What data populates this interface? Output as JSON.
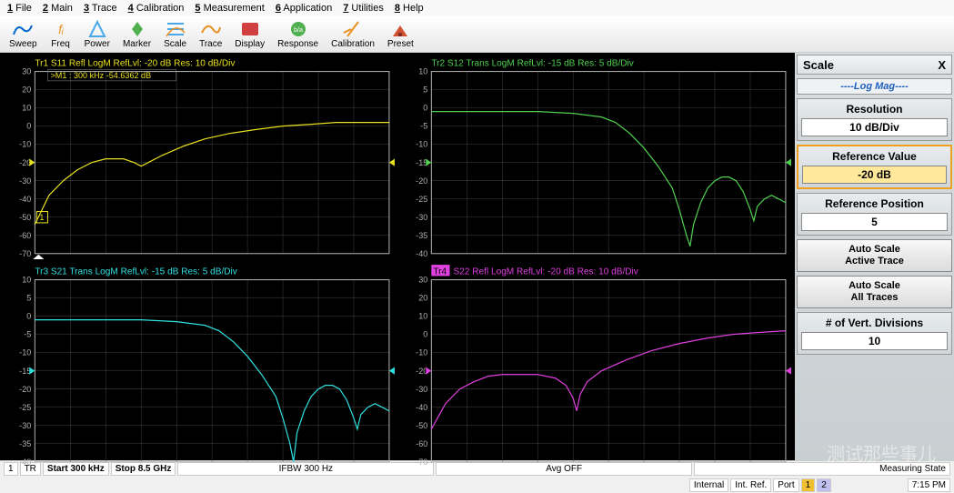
{
  "menu": [
    "1 File",
    "2 Main",
    "3 Trace",
    "4 Calibration",
    "5 Measurement",
    "6 Application",
    "7 Utilities",
    "8 Help"
  ],
  "toolbar": [
    {
      "label": "Sweep",
      "color": "#4aa8e8"
    },
    {
      "label": "Freq",
      "color": "#e89020"
    },
    {
      "label": "Power",
      "color": "#4aa8e8"
    },
    {
      "label": "Marker",
      "color": "#50b050"
    },
    {
      "label": "Scale",
      "color": "#4aa8e8"
    },
    {
      "label": "Trace",
      "color": "#e89020"
    },
    {
      "label": "Display",
      "color": "#d04040"
    },
    {
      "label": "Response",
      "color": "#50b050"
    },
    {
      "label": "Calibration",
      "color": "#e89020"
    },
    {
      "label": "Preset",
      "color": "#d05030"
    }
  ],
  "plots": [
    {
      "title": "Tr1  S11 Refl LogM RefLvl: -20 dB Res: 10 dB/Div",
      "color": "#e8e020",
      "title_color": "#e8e020",
      "ymin": -70,
      "ymax": 30,
      "ystep": 10,
      "ref": -20,
      "marker": ">M1 :  300 kHz  -54.6362  dB",
      "active_label": "1",
      "data": [
        [
          0,
          -54
        ],
        [
          0.04,
          -38
        ],
        [
          0.08,
          -30
        ],
        [
          0.12,
          -24
        ],
        [
          0.16,
          -20
        ],
        [
          0.2,
          -18
        ],
        [
          0.25,
          -18
        ],
        [
          0.28,
          -20
        ],
        [
          0.3,
          -22
        ],
        [
          0.32,
          -20
        ],
        [
          0.36,
          -16
        ],
        [
          0.42,
          -11
        ],
        [
          0.48,
          -7
        ],
        [
          0.55,
          -4
        ],
        [
          0.62,
          -2
        ],
        [
          0.7,
          0
        ],
        [
          0.78,
          1
        ],
        [
          0.85,
          2
        ],
        [
          0.92,
          2
        ],
        [
          1,
          2
        ]
      ]
    },
    {
      "title": "Tr2  S12 Trans LogM RefLvl: -15 dB Res: 5 dB/Div",
      "color": "#50d050",
      "title_color": "#50d050",
      "ymin": -40,
      "ymax": 10,
      "ystep": 5,
      "ref": -15,
      "data": [
        [
          0,
          -1
        ],
        [
          0.1,
          -1
        ],
        [
          0.2,
          -1
        ],
        [
          0.3,
          -1
        ],
        [
          0.4,
          -1.5
        ],
        [
          0.48,
          -2.5
        ],
        [
          0.52,
          -4
        ],
        [
          0.56,
          -7
        ],
        [
          0.6,
          -11
        ],
        [
          0.64,
          -16
        ],
        [
          0.68,
          -22
        ],
        [
          0.7,
          -28
        ],
        [
          0.72,
          -35
        ],
        [
          0.73,
          -38
        ],
        [
          0.74,
          -32
        ],
        [
          0.76,
          -26
        ],
        [
          0.78,
          -22
        ],
        [
          0.8,
          -20
        ],
        [
          0.82,
          -19
        ],
        [
          0.84,
          -19
        ],
        [
          0.86,
          -20
        ],
        [
          0.88,
          -23
        ],
        [
          0.9,
          -28
        ],
        [
          0.91,
          -31
        ],
        [
          0.92,
          -27
        ],
        [
          0.94,
          -25
        ],
        [
          0.96,
          -24
        ],
        [
          0.98,
          -25
        ],
        [
          1,
          -26
        ]
      ]
    },
    {
      "title": "Tr3  S21 Trans LogM RefLvl: -15 dB Res: 5 dB/Div",
      "color": "#30e0e0",
      "title_color": "#30e0e0",
      "ymin": -40,
      "ymax": 10,
      "ystep": 5,
      "ref": -15,
      "data": [
        [
          0,
          -1
        ],
        [
          0.1,
          -1
        ],
        [
          0.2,
          -1
        ],
        [
          0.3,
          -1
        ],
        [
          0.4,
          -1.5
        ],
        [
          0.48,
          -2.5
        ],
        [
          0.52,
          -4
        ],
        [
          0.56,
          -7
        ],
        [
          0.6,
          -11
        ],
        [
          0.64,
          -16
        ],
        [
          0.68,
          -22
        ],
        [
          0.7,
          -28
        ],
        [
          0.72,
          -35
        ],
        [
          0.73,
          -40
        ],
        [
          0.74,
          -32
        ],
        [
          0.76,
          -26
        ],
        [
          0.78,
          -22
        ],
        [
          0.8,
          -20
        ],
        [
          0.82,
          -19
        ],
        [
          0.84,
          -19
        ],
        [
          0.86,
          -20
        ],
        [
          0.88,
          -23
        ],
        [
          0.9,
          -28
        ],
        [
          0.91,
          -31
        ],
        [
          0.92,
          -27
        ],
        [
          0.94,
          -25
        ],
        [
          0.96,
          -24
        ],
        [
          0.98,
          -25
        ],
        [
          1,
          -26
        ]
      ]
    },
    {
      "title": "Tr4  S22 Refl LogM RefLvl: -20 dB Res: 10 dB/Div",
      "color": "#e040e0",
      "title_color": "#e040e0",
      "ymin": -70,
      "ymax": 30,
      "ystep": 10,
      "ref": -20,
      "title_highlight": true,
      "data": [
        [
          0,
          -52
        ],
        [
          0.04,
          -38
        ],
        [
          0.08,
          -30
        ],
        [
          0.12,
          -26
        ],
        [
          0.16,
          -23
        ],
        [
          0.2,
          -22
        ],
        [
          0.25,
          -22
        ],
        [
          0.3,
          -22
        ],
        [
          0.35,
          -24
        ],
        [
          0.38,
          -28
        ],
        [
          0.4,
          -35
        ],
        [
          0.41,
          -42
        ],
        [
          0.42,
          -33
        ],
        [
          0.44,
          -26
        ],
        [
          0.48,
          -20
        ],
        [
          0.55,
          -14
        ],
        [
          0.62,
          -9
        ],
        [
          0.7,
          -5
        ],
        [
          0.78,
          -2
        ],
        [
          0.85,
          0
        ],
        [
          0.92,
          1
        ],
        [
          1,
          2
        ]
      ]
    }
  ],
  "sidebar": {
    "title": "Scale",
    "subtitle": "----Log Mag----",
    "resolution": {
      "label": "Resolution",
      "value": "10  dB/Div"
    },
    "refval": {
      "label": "Reference Value",
      "value": "-20  dB"
    },
    "refpos": {
      "label": "Reference Position",
      "value": "5"
    },
    "btn1": "Auto Scale\nActive Trace",
    "btn2": "Auto Scale\nAll Traces",
    "divs": {
      "label": "# of Vert. Divisions",
      "value": "10"
    }
  },
  "status": {
    "ch": "1",
    "tr": "TR",
    "start": "Start 300 kHz",
    "stop": "Stop 8.5 GHz",
    "ifbw": "IFBW 300 Hz",
    "avg": "Avg OFF",
    "meas": "Measuring State",
    "internal": "Internal",
    "intref": "Int. Ref.",
    "port": "Port",
    "p1": "1",
    "p2": "2",
    "time": "7:15 PM"
  },
  "grid_color": "#404040",
  "axis_color": "#b0b0b0"
}
